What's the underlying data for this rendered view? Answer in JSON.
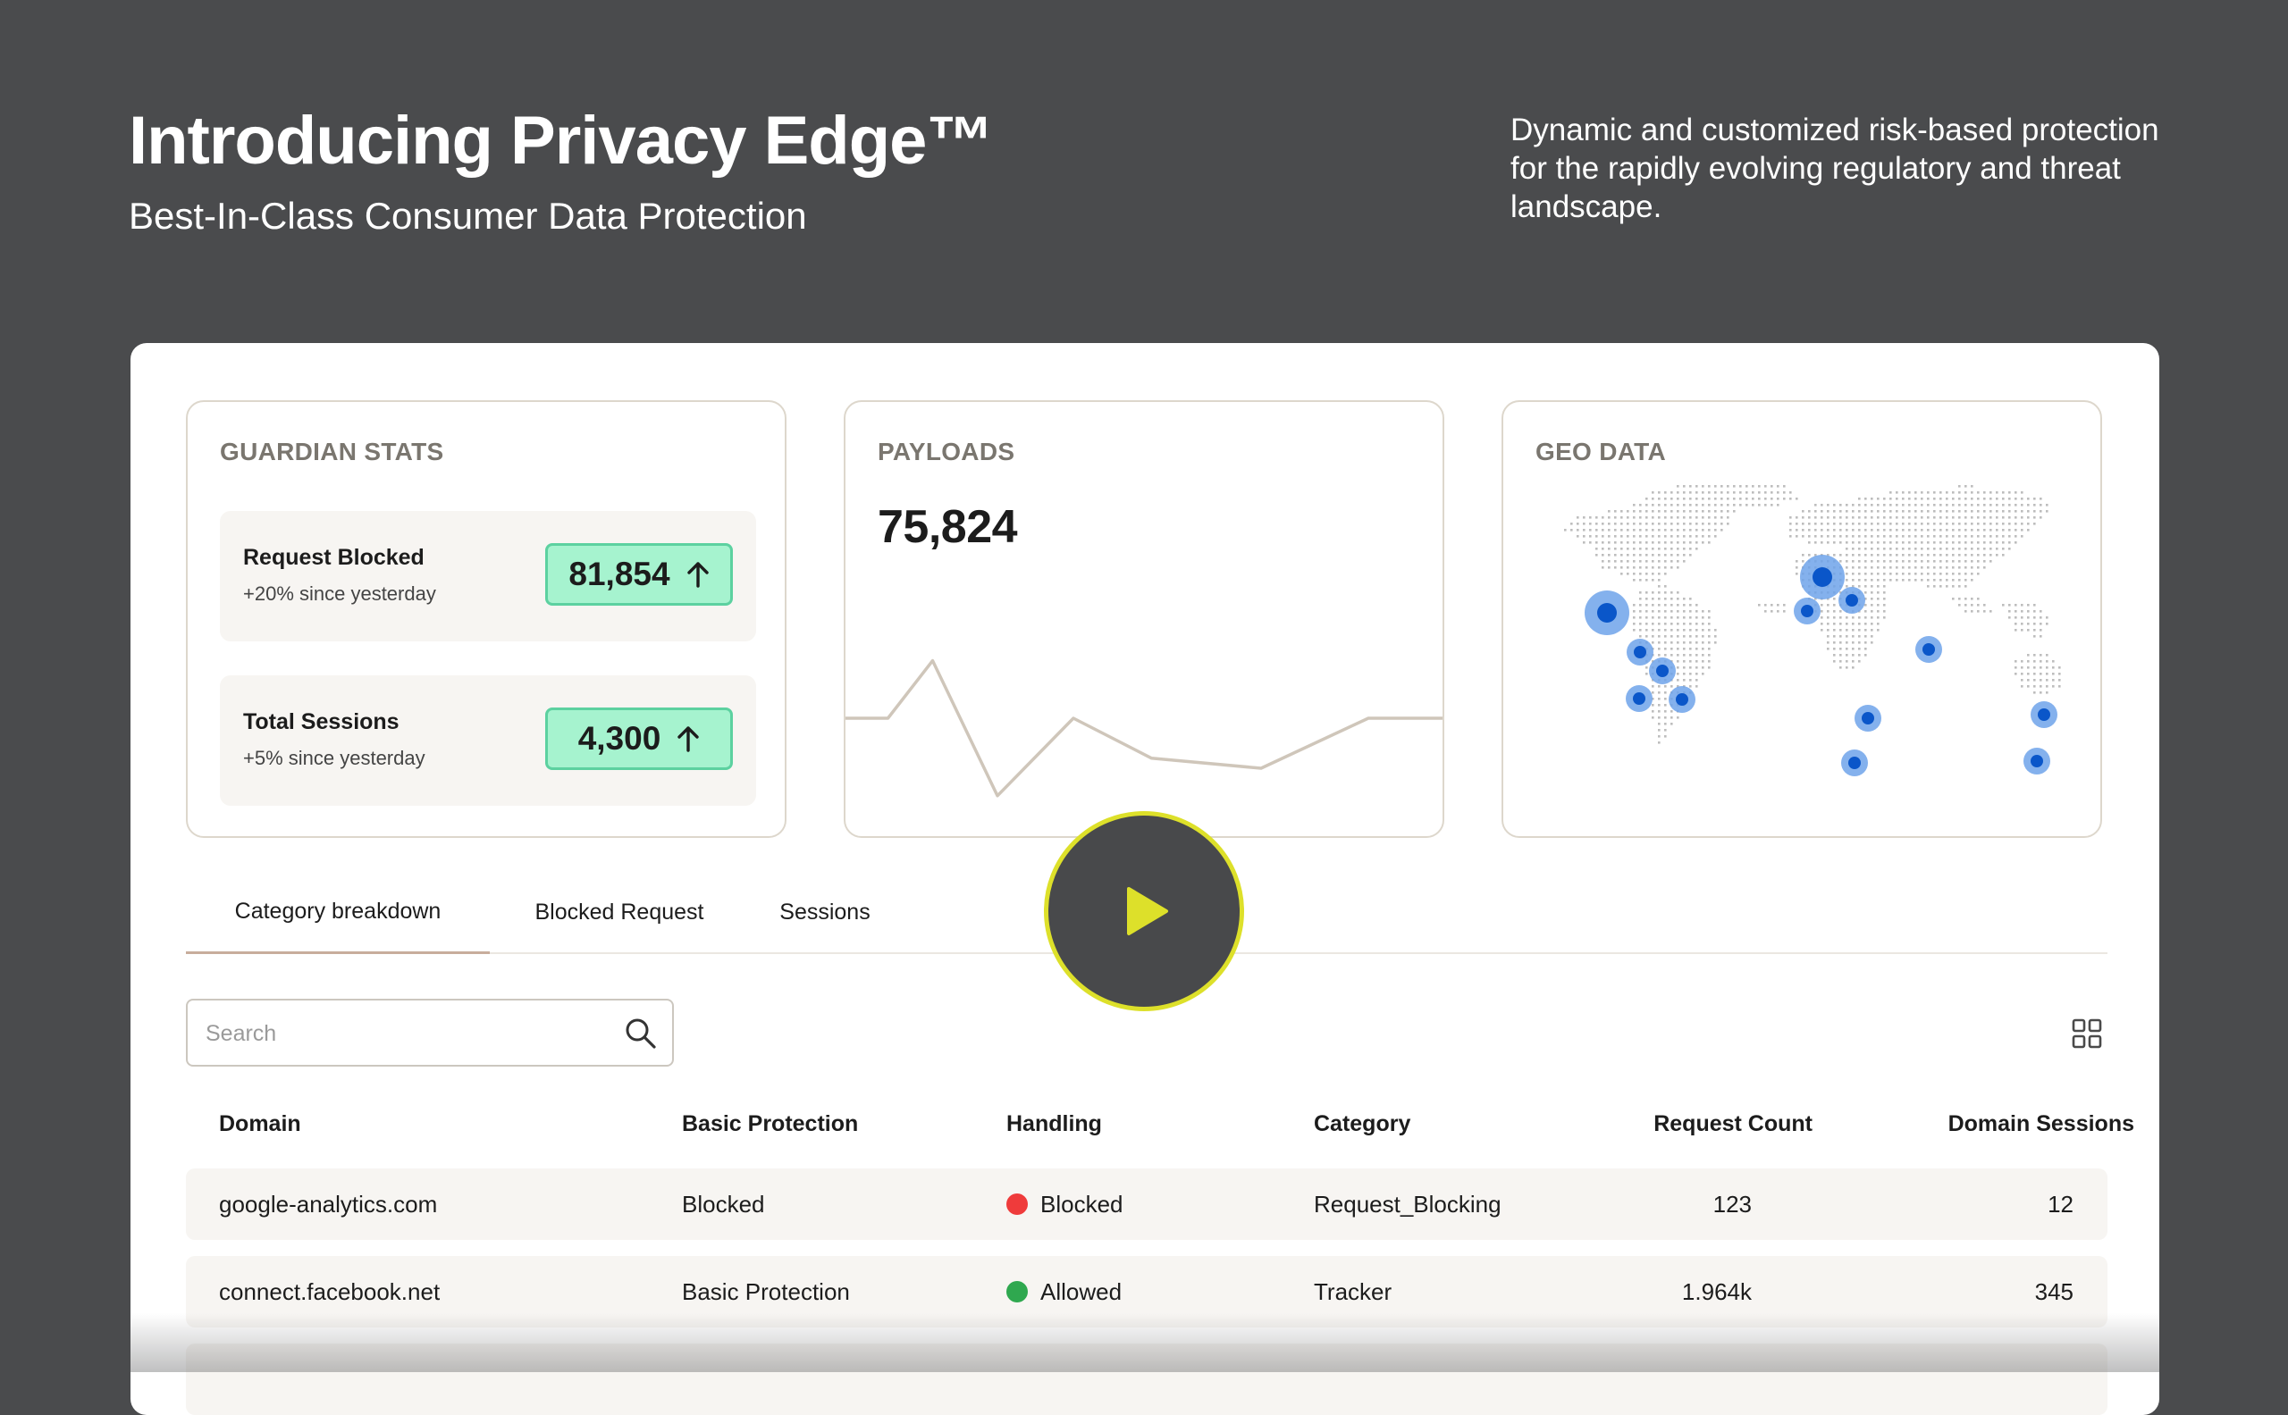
{
  "hero": {
    "title": "Introducing Privacy Edge™",
    "subtitle": "Best-In-Class Consumer Data Protection",
    "description": "Dynamic and customized risk-based protection for the rapidly evolving regulatory and threat landscape."
  },
  "guardian_stats": {
    "title": "GUARDIAN STATS",
    "items": [
      {
        "label": "Request Blocked",
        "change": "+20% since yesterday",
        "value": "81,854",
        "trend_icon": "arrow-up-icon"
      },
      {
        "label": "Total Sessions",
        "change": "+5% since yesterday",
        "value": "4,300",
        "trend_icon": "arrow-up-icon"
      }
    ]
  },
  "payloads": {
    "title": "PAYLOADS",
    "value": "75,824"
  },
  "chart_data": {
    "type": "line",
    "x": [
      0,
      1,
      2,
      3,
      4,
      5,
      6,
      7,
      8
    ],
    "values": [
      45,
      45,
      68,
      14,
      45,
      29,
      25,
      45,
      45
    ],
    "xlabel": "",
    "ylabel": "",
    "ylim": [
      0,
      100
    ],
    "grid": false,
    "axes_visible": false,
    "line_color": "#cfc6ba"
  },
  "geo_data": {
    "title": "GEO DATA",
    "map_icon": "world-dot-map-icon",
    "marker_color": "#0a56c9",
    "halo_color": "#6fa3ea"
  },
  "tabs": [
    {
      "label": "Category breakdown",
      "active": true
    },
    {
      "label": "Blocked Request",
      "active": false
    },
    {
      "label": "Sessions",
      "active": false
    }
  ],
  "search": {
    "placeholder": "Search",
    "value": "",
    "icon": "search-icon"
  },
  "view_toggle_icon": "grid-view-icon",
  "table": {
    "columns": [
      "Domain",
      "Basic Protection",
      "Handling",
      "Category",
      "Request Count",
      "Domain Sessions"
    ],
    "rows": [
      {
        "domain": "google-analytics.com",
        "protection": "Blocked",
        "handling": "Blocked",
        "handling_color": "#ef3b3b",
        "category": "Request_Blocking",
        "request_count": "123",
        "domain_sessions": "12"
      },
      {
        "domain": "connect.facebook.net",
        "protection": "Basic Protection",
        "handling": "Allowed",
        "handling_color": "#2fa84f",
        "category": "Tracker",
        "request_count": "1.964k",
        "domain_sessions": "345"
      }
    ]
  },
  "video": {
    "play_icon": "play-icon",
    "accent_color": "#dde02a"
  },
  "colors": {
    "page_background": "#4a4b4d",
    "stat_pill": "#a6f3cf",
    "stat_pill_border": "#5cd1a0"
  }
}
